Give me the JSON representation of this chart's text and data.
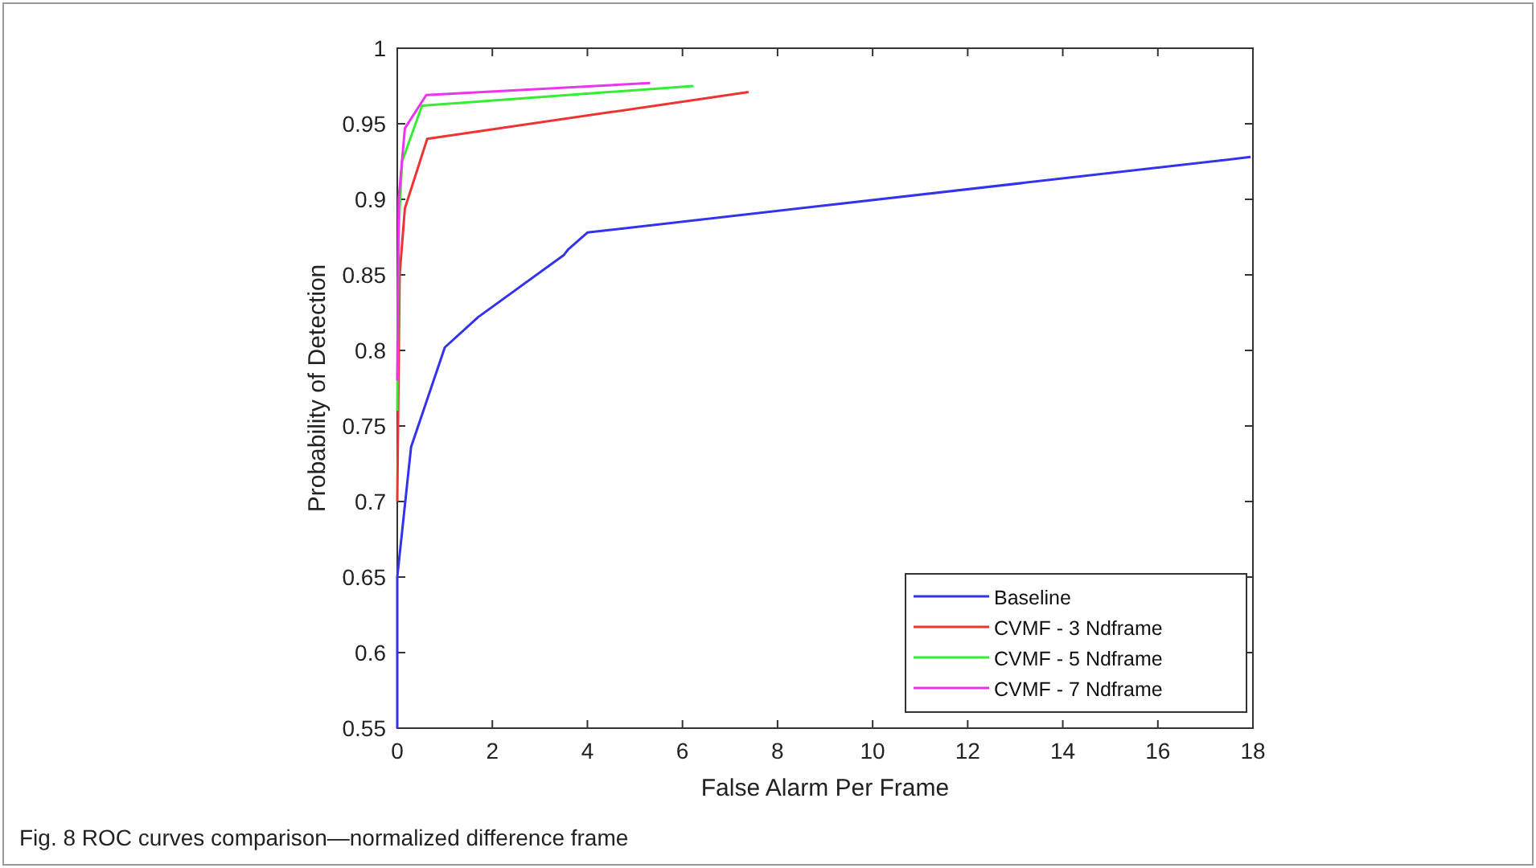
{
  "chart_data": {
    "type": "line",
    "xlabel": "False Alarm Per Frame",
    "ylabel": "Probability of Detection",
    "annotations": [
      "Fig. 8  ROC curves comparison—normalized difference frame"
    ],
    "xlim": [
      0,
      18
    ],
    "xticks": [
      0,
      2,
      4,
      6,
      8,
      10,
      12,
      14,
      16,
      18
    ],
    "ylim": [
      0.55,
      1
    ],
    "yticks": [
      0.55,
      0.6,
      0.65,
      0.7,
      0.75,
      0.8,
      0.85,
      0.9,
      0.95,
      1
    ],
    "grid": false,
    "legend": "bottom right",
    "line_style": "solid",
    "series": [
      {
        "name": "Baseline",
        "color": "#3333ee",
        "x": [
          0,
          0,
          0.29,
          1.0,
          1.7,
          3.5,
          3.6,
          4.0,
          17.95
        ],
        "values": [
          0.55,
          0.65,
          0.736,
          0.802,
          0.822,
          0.863,
          0.867,
          0.878,
          0.928
        ]
      },
      {
        "name": "CVMF - 3 Ndframe",
        "color": "#ee3333",
        "x": [
          0,
          0.05,
          0.16,
          0.63,
          7.39
        ],
        "values": [
          0.7,
          0.85,
          0.894,
          0.94,
          0.971
        ]
      },
      {
        "name": "CVMF - 5 Ndframe",
        "color": "#33ee33",
        "x": [
          0,
          0.03,
          0.1,
          0.52,
          6.23
        ],
        "values": [
          0.76,
          0.88,
          0.925,
          0.962,
          0.975
        ]
      },
      {
        "name": "CVMF - 7 Ndframe",
        "color": "#ee33ee",
        "x": [
          0,
          0.03,
          0.16,
          0.61,
          5.32
        ],
        "values": [
          0.78,
          0.9,
          0.947,
          0.969,
          0.977
        ]
      }
    ]
  }
}
